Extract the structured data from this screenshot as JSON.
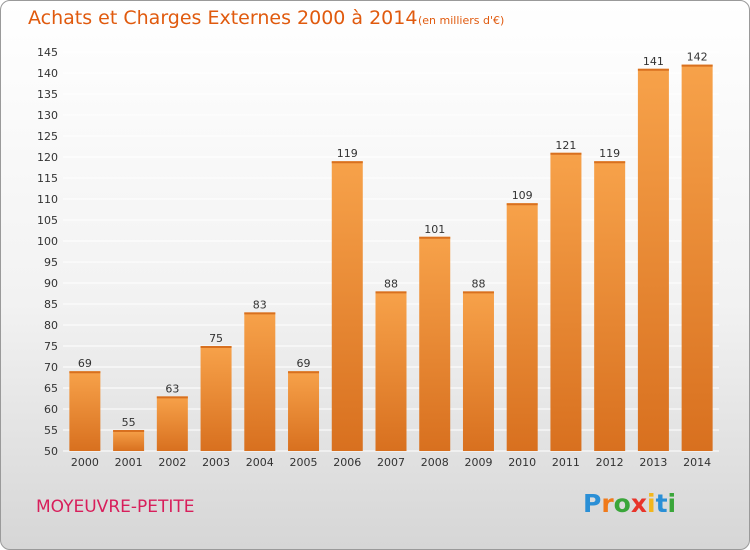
{
  "header": {
    "title": "Achats et Charges Externes 2000 à 2014",
    "subtitle": "(en milliers d'€)"
  },
  "footer": {
    "commune": "MOYEUVRE-PETITE",
    "logo": "Proxiti",
    "logo_letters": [
      {
        "char": "P",
        "color": "#2a8fd6"
      },
      {
        "char": "r",
        "color": "#f07a1a"
      },
      {
        "char": "o",
        "color": "#3aa63a"
      },
      {
        "char": "x",
        "color": "#e8342a"
      },
      {
        "char": "i",
        "color": "#f2b61c"
      },
      {
        "char": "t",
        "color": "#2a8fd6"
      },
      {
        "char": "i",
        "color": "#3aa63a"
      }
    ]
  },
  "colors": {
    "bar_light": "#f7a24a",
    "bar_dark": "#d8701f",
    "title": "#e05a0e",
    "commune": "#d81e5b",
    "grid": "#ffffff"
  },
  "chart_data": {
    "type": "bar",
    "categories": [
      "2000",
      "2001",
      "2002",
      "2003",
      "2004",
      "2005",
      "2006",
      "2007",
      "2008",
      "2009",
      "2010",
      "2011",
      "2012",
      "2013",
      "2014"
    ],
    "values": [
      69,
      55,
      63,
      75,
      83,
      69,
      119,
      88,
      101,
      88,
      109,
      121,
      119,
      141,
      142
    ],
    "title": "Achats et Charges Externes 2000 à 2014",
    "subtitle": "(en milliers d'€)",
    "xlabel": "",
    "ylabel": "",
    "ylim": [
      50,
      145
    ],
    "yticks": [
      50,
      55,
      60,
      65,
      70,
      75,
      80,
      85,
      90,
      95,
      100,
      105,
      110,
      115,
      120,
      125,
      130,
      135,
      140,
      145
    ],
    "grid": true,
    "legend": "none"
  }
}
